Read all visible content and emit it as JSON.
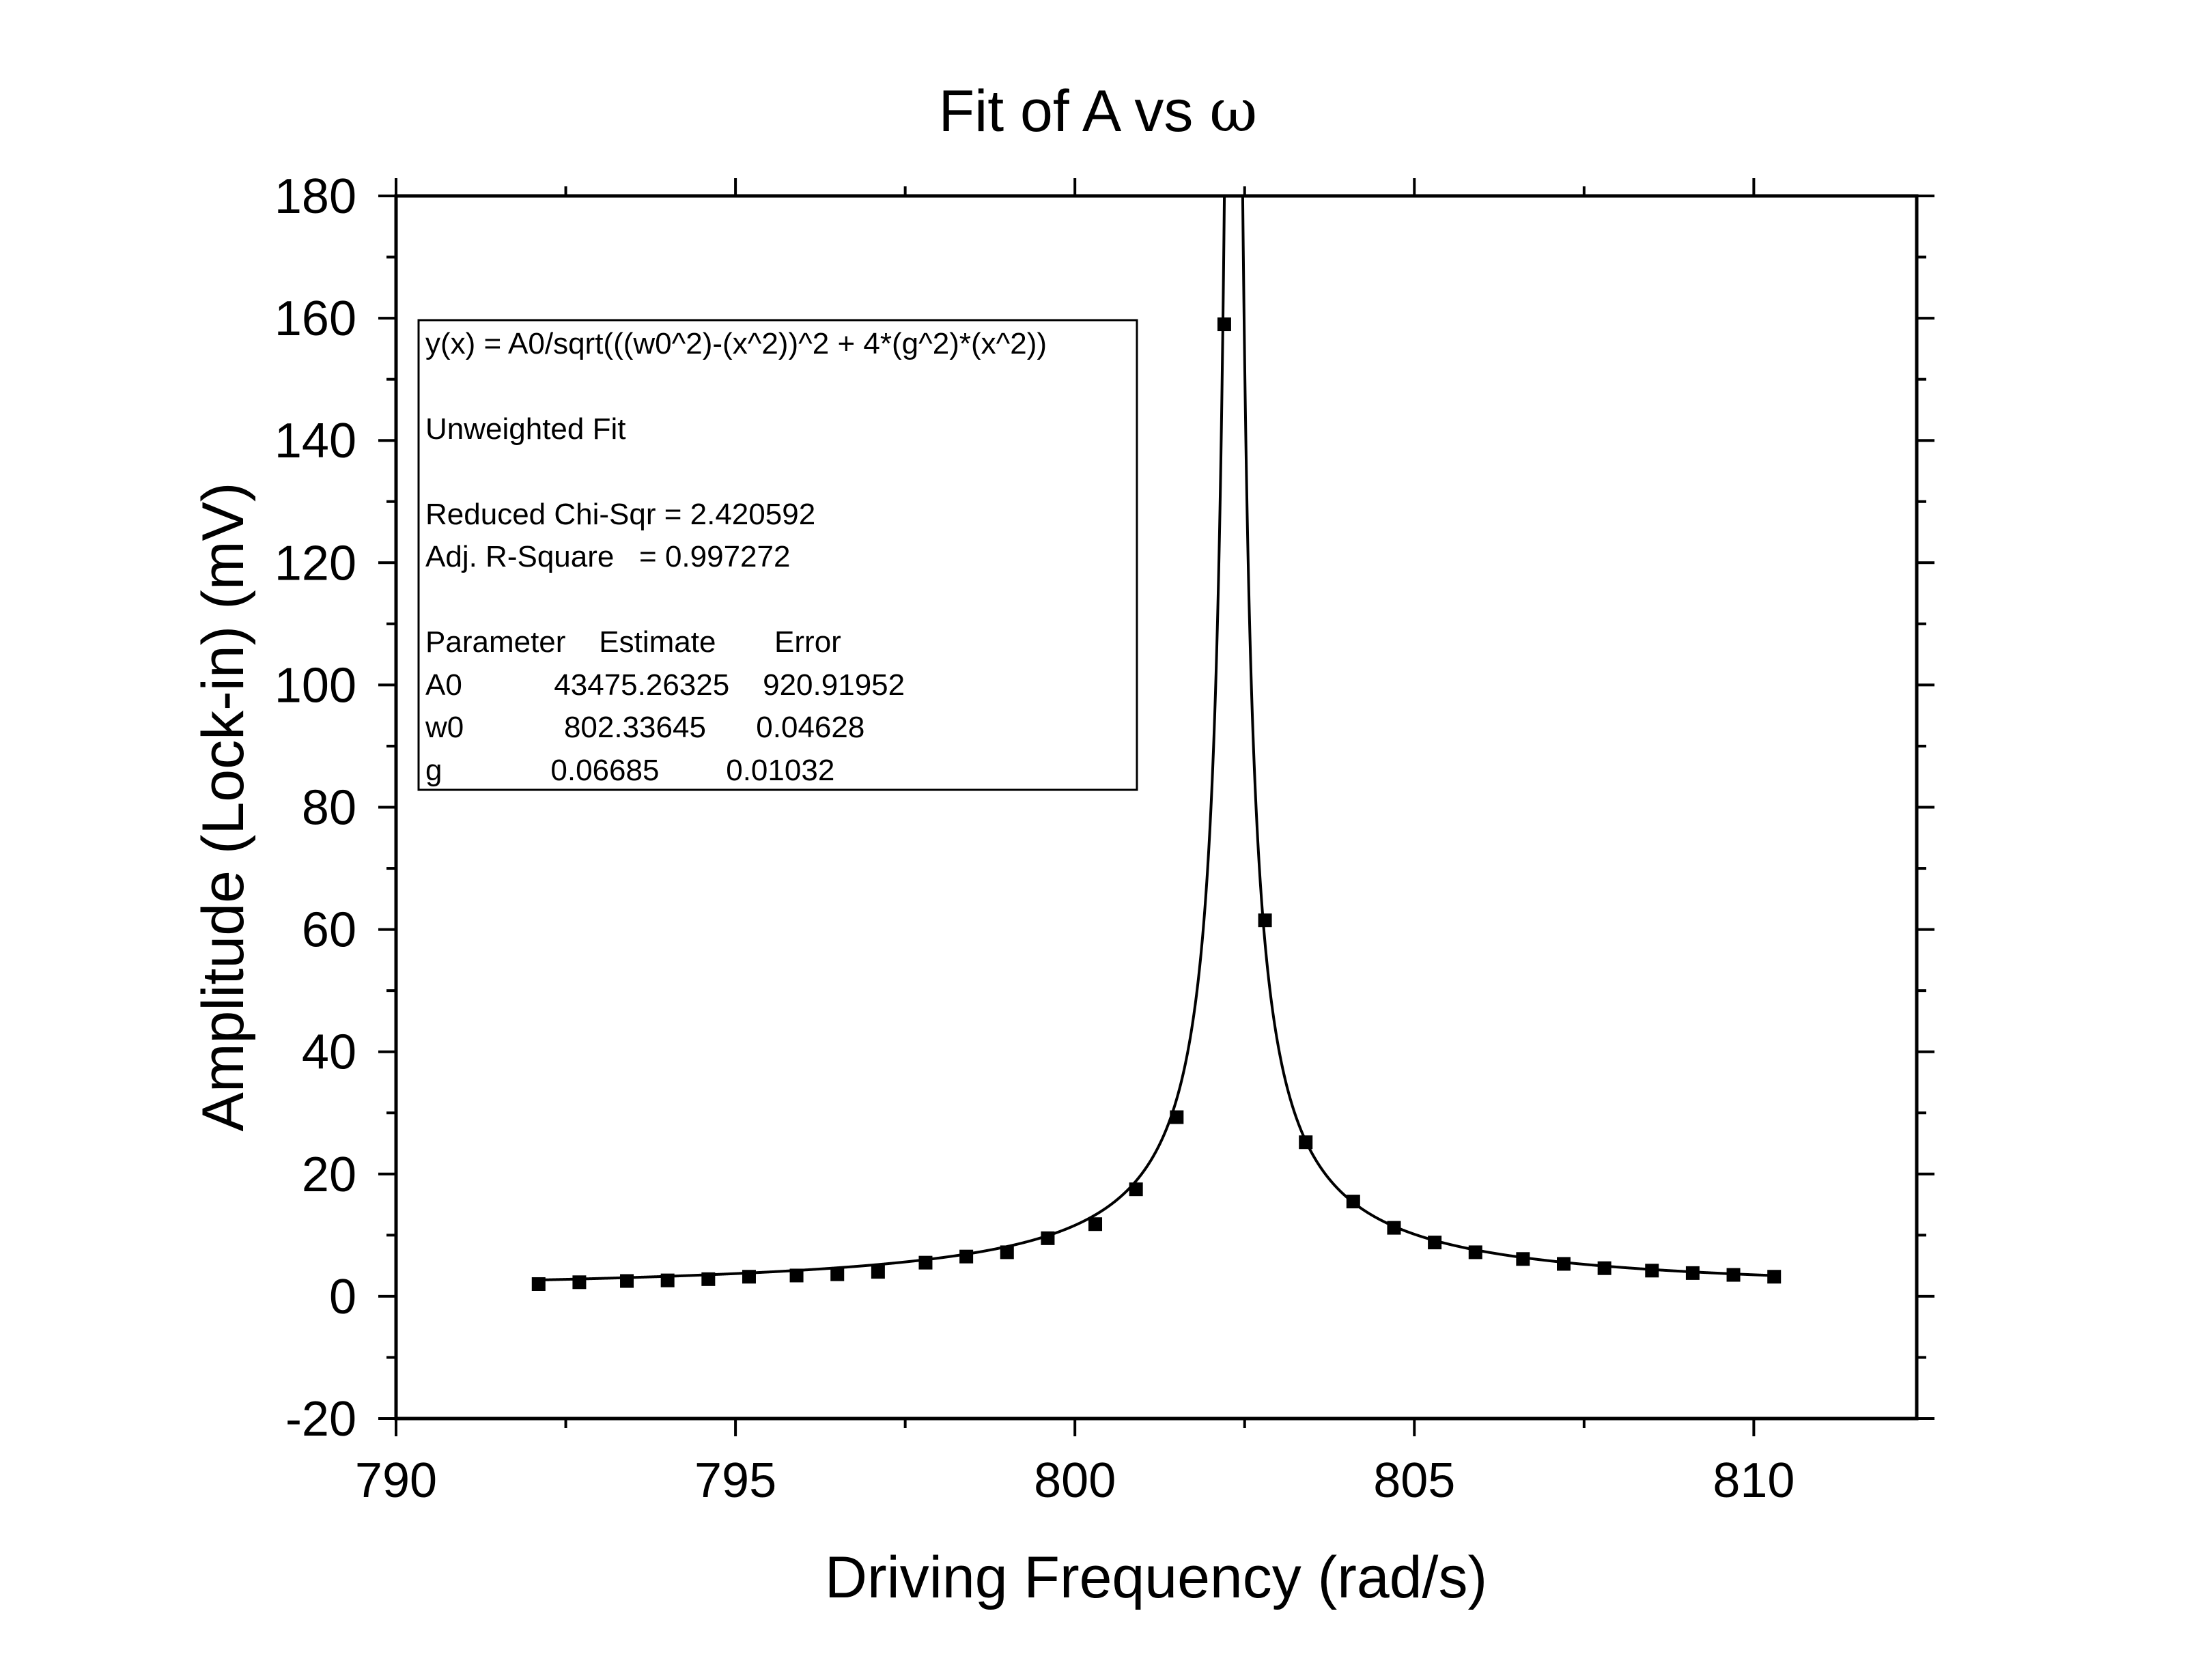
{
  "chart_data": {
    "type": "scatter",
    "title_text": "Fit of A vs ",
    "title_symbol": "ω",
    "xlabel": "Driving Frequency (rad/s)",
    "ylabel": "Amplitude (Lock-in) (mV)",
    "xlim": [
      790,
      812.4
    ],
    "ylim": [
      -20,
      180
    ],
    "xticks": [
      790,
      795,
      800,
      805,
      810
    ],
    "yticks": [
      -20,
      0,
      20,
      40,
      60,
      80,
      100,
      120,
      140,
      160,
      180
    ],
    "x_minor_step": 2.5,
    "y_minor_step": 10,
    "grid": false,
    "series": [
      {
        "x": [
          792.1,
          792.7,
          793.4,
          794.0,
          794.6,
          795.2,
          795.9,
          796.5,
          797.1,
          797.8,
          798.4,
          799.0,
          799.6,
          800.3,
          800.9,
          801.5,
          802.2,
          802.8,
          803.4,
          804.1,
          804.7,
          805.3,
          805.9,
          806.6,
          807.2,
          807.8,
          808.5,
          809.1,
          809.7,
          810.3
        ],
        "y": [
          2.0,
          2.3,
          2.5,
          2.6,
          2.8,
          3.2,
          3.4,
          3.6,
          4.0,
          5.5,
          6.5,
          7.2,
          9.5,
          11.8,
          17.5,
          29.3,
          159.0,
          61.5,
          25.2,
          15.5,
          11.2,
          8.8,
          7.2,
          6.1,
          5.3,
          4.6,
          4.2,
          3.8,
          3.5,
          3.2
        ]
      },
      {
        "fit_params": {
          "A0": 43475.26325,
          "w0": 802.33645,
          "g": 0.06685
        },
        "x_range": [
          792.1,
          810.3
        ]
      }
    ],
    "fit_box": {
      "lines": [
        "y(x) = A0/sqrt(((w0^2)-(x^2))^2 + 4*(g^2)*(x^2))",
        "",
        "Unweighted Fit",
        "",
        "Reduced Chi-Sqr = 2.420592",
        "Adj. R-Square   = 0.997272",
        "",
        "Parameter    Estimate       Error",
        "A0           43475.26325    920.91952",
        "w0            802.33645      0.04628",
        "g             0.06685        0.01032"
      ]
    }
  }
}
